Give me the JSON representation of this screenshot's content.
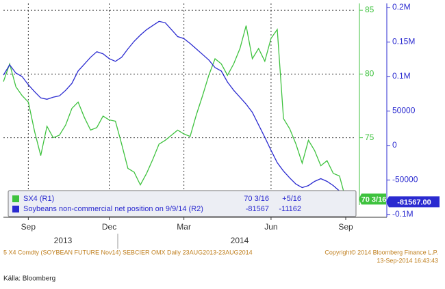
{
  "chart_data": {
    "type": "line",
    "categories": [
      null,
      null,
      null,
      null,
      "Sep",
      null,
      null,
      null,
      null,
      null,
      null,
      null,
      null,
      null,
      null,
      null,
      null,
      "Dec",
      null,
      null,
      null,
      null,
      null,
      null,
      null,
      null,
      null,
      null,
      null,
      "Mar",
      null,
      null,
      null,
      null,
      null,
      null,
      null,
      null,
      null,
      null,
      null,
      null,
      null,
      "Jun",
      null,
      null,
      null,
      null,
      null,
      null,
      null,
      null,
      null,
      null,
      null,
      "Sep"
    ],
    "year_labels": [
      "2013",
      "2014"
    ],
    "series": [
      {
        "name": "SX4 (R1)",
        "color": "#3ec23e",
        "axis": "y",
        "values": [
          79.4,
          80.8,
          79.0,
          78.3,
          77.8,
          75.5,
          73.6,
          75.9,
          75.0,
          75.2,
          76.0,
          77.3,
          77.8,
          76.6,
          75.6,
          75.8,
          76.7,
          76.4,
          76.3,
          74.5,
          72.6,
          72.3,
          71.3,
          72.2,
          73.3,
          74.5,
          74.8,
          75.2,
          75.6,
          75.3,
          75.1,
          76.8,
          78.3,
          79.9,
          81.2,
          80.8,
          79.9,
          80.8,
          82.0,
          83.8,
          81.2,
          82.0,
          81.0,
          82.8,
          83.5,
          76.5,
          75.7,
          74.5,
          73.0,
          74.8,
          74.0,
          72.8,
          73.2,
          72.2,
          72.0,
          70.1875
        ],
        "value_labels": [
          null,
          null,
          null,
          null,
          null,
          null,
          null,
          null,
          null,
          null,
          null,
          null,
          null,
          null,
          null,
          null,
          null,
          null,
          null,
          null,
          null,
          null,
          null,
          null,
          null,
          null,
          null,
          null,
          null,
          null,
          null,
          null,
          null,
          null,
          null,
          null,
          null,
          null,
          null,
          null,
          null,
          null,
          null,
          null,
          null,
          null,
          null,
          null,
          null,
          null,
          null,
          null,
          null,
          null,
          null,
          "70 3/16"
        ],
        "last": "70 3/16",
        "change": "+5/16"
      },
      {
        "name": "Soybeans non-commercial net position on 9/9/14 (R2)",
        "color": "#2a2ad0",
        "axis": "y2",
        "values": [
          102000,
          117000,
          105000,
          100000,
          88000,
          78000,
          69000,
          67000,
          70000,
          72000,
          80000,
          90000,
          108000,
          118000,
          128000,
          136000,
          133000,
          126000,
          122000,
          128000,
          140000,
          151000,
          160000,
          168000,
          174000,
          180000,
          178000,
          168000,
          158000,
          155000,
          148000,
          140000,
          132000,
          124000,
          113000,
          108000,
          92000,
          80000,
          70000,
          60000,
          48000,
          30000,
          12000,
          -7000,
          -25000,
          -37000,
          -47000,
          -56000,
          -61000,
          -58000,
          -52000,
          -48000,
          -52000,
          -58000,
          -66000,
          -81567
        ],
        "value_labels": [
          null,
          null,
          null,
          null,
          null,
          null,
          null,
          null,
          null,
          null,
          null,
          null,
          null,
          null,
          null,
          null,
          null,
          null,
          null,
          null,
          null,
          null,
          null,
          null,
          null,
          null,
          null,
          null,
          null,
          null,
          null,
          null,
          null,
          null,
          null,
          null,
          null,
          null,
          null,
          null,
          null,
          null,
          null,
          null,
          null,
          null,
          null,
          null,
          null,
          null,
          null,
          null,
          null,
          null,
          null,
          "-81567.00"
        ],
        "last": "-81567",
        "change": "-11162"
      }
    ],
    "ylim": [
      68.76,
      85.54
    ],
    "yticks": [
      75,
      80,
      85
    ],
    "y2lim": [
      -104000,
      206000
    ],
    "y2ticks": [
      {
        "value": -100000,
        "label": "-0.1M"
      },
      -50000,
      0,
      50000,
      {
        "value": 100000,
        "label": "0.1M"
      },
      {
        "value": 150000,
        "label": "0.15M"
      },
      {
        "value": 200000,
        "label": "0.2M"
      }
    ],
    "grid": true,
    "footer_left": "5 X4 Comdty  (SOYBEAN FUTURE    Nov14) SEBCIER OMX  Daily 23AUG2013-23AUG2014",
    "footer_right": [
      "Copyright© 2014 Bloomberg Finance L.P.",
      "13-Sep-2014 16:43:43"
    ],
    "source": "Källa: Bloomberg"
  }
}
